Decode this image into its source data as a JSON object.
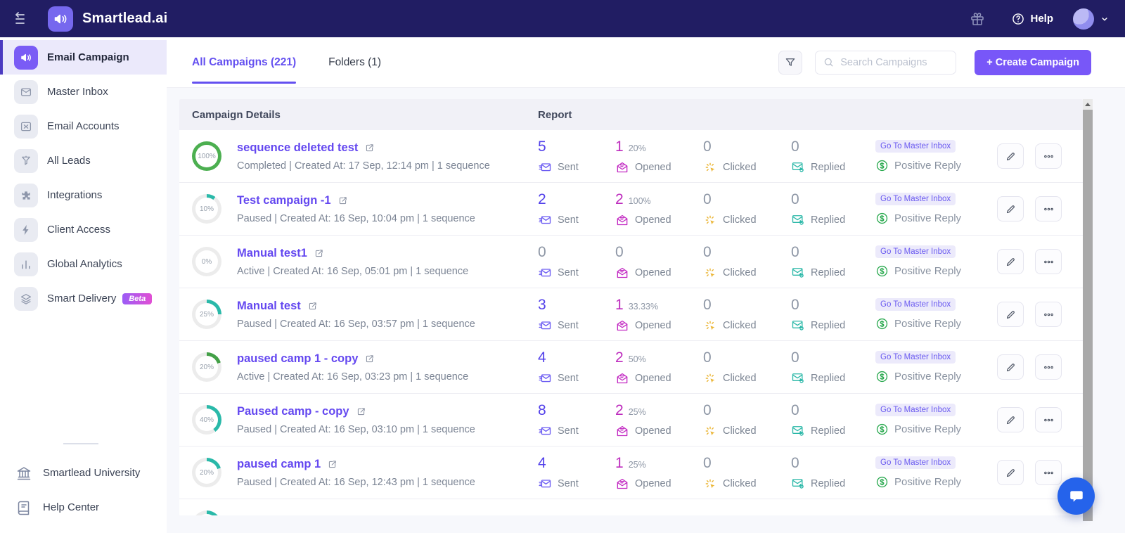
{
  "topbar": {
    "brand": "Smartlead.ai",
    "help_label": "Help"
  },
  "sidebar": {
    "items": [
      {
        "id": "email-campaign",
        "label": "Email Campaign",
        "icon": "megaphone",
        "active": true
      },
      {
        "id": "master-inbox",
        "label": "Master Inbox",
        "icon": "inbox",
        "active": false
      },
      {
        "id": "email-accounts",
        "label": "Email Accounts",
        "icon": "mail-x",
        "active": false
      },
      {
        "id": "all-leads",
        "label": "All Leads",
        "icon": "funnel-leads",
        "active": false
      },
      {
        "id": "integrations",
        "label": "Integrations",
        "icon": "puzzle",
        "active": false
      },
      {
        "id": "client-access",
        "label": "Client Access",
        "icon": "bolt",
        "active": false
      },
      {
        "id": "global-analytics",
        "label": "Global Analytics",
        "icon": "bar-chart",
        "active": false
      },
      {
        "id": "smart-delivery",
        "label": "Smart Delivery",
        "icon": "layers",
        "active": false,
        "badge": "Beta"
      }
    ],
    "footer_items": [
      {
        "id": "smartlead-university",
        "label": "Smartlead University",
        "icon": "bank"
      },
      {
        "id": "help-center",
        "label": "Help Center",
        "icon": "book"
      }
    ]
  },
  "toolbar": {
    "tabs": [
      {
        "label": "All Campaigns (221)",
        "active": true
      },
      {
        "label": "Folders (1)",
        "active": false
      }
    ],
    "search_placeholder": "Search Campaigns",
    "create_button": "+ Create Campaign"
  },
  "table": {
    "headers": {
      "details": "Campaign Details",
      "report": "Report"
    },
    "stat_labels": [
      "Sent",
      "Opened",
      "Clicked",
      "Replied"
    ],
    "row_labels": {
      "master_inbox": "Go To Master Inbox",
      "positive_reply": "Positive Reply"
    },
    "rows": [
      {
        "percent": "100%",
        "ring_value": 100,
        "ring_color": "#4caf50",
        "name": "sequence deleted test",
        "meta": "Completed | Created At: 17 Sep, 12:14 pm | 1 sequence",
        "sent": "5",
        "opened": "1",
        "opened_rate": "20%",
        "clicked": "0",
        "replied": "0"
      },
      {
        "percent": "10%",
        "ring_value": 10,
        "ring_color": "#2ab9a9",
        "name": "Test campaign -1",
        "meta": "Paused | Created At: 16 Sep, 10:04 pm | 1 sequence",
        "sent": "2",
        "opened": "2",
        "opened_rate": "100%",
        "clicked": "0",
        "replied": "0"
      },
      {
        "percent": "0%",
        "ring_value": 0,
        "ring_color": "#2ab9a9",
        "name": "Manual test1",
        "meta": "Active | Created At: 16 Sep, 05:01 pm | 1 sequence",
        "sent": "0",
        "opened": "0",
        "opened_rate": "",
        "clicked": "0",
        "replied": "0"
      },
      {
        "percent": "25%",
        "ring_value": 25,
        "ring_color": "#2ab9a9",
        "name": "Manual test",
        "meta": "Paused | Created At: 16 Sep, 03:57 pm | 1 sequence",
        "sent": "3",
        "opened": "1",
        "opened_rate": "33.33%",
        "clicked": "0",
        "replied": "0"
      },
      {
        "percent": "20%",
        "ring_value": 20,
        "ring_color": "#43a047",
        "name": "paused camp 1 - copy",
        "meta": "Active | Created At: 16 Sep, 03:23 pm | 1 sequence",
        "sent": "4",
        "opened": "2",
        "opened_rate": "50%",
        "clicked": "0",
        "replied": "0"
      },
      {
        "percent": "40%",
        "ring_value": 40,
        "ring_color": "#2ab9a9",
        "name": "Paused camp - copy",
        "meta": "Paused | Created At: 16 Sep, 03:10 pm | 1 sequence",
        "sent": "8",
        "opened": "2",
        "opened_rate": "25%",
        "clicked": "0",
        "replied": "0"
      },
      {
        "percent": "20%",
        "ring_value": 20,
        "ring_color": "#2ab9a9",
        "name": "paused camp 1",
        "meta": "Paused | Created At: 16 Sep, 12:43 pm | 1 sequence",
        "sent": "4",
        "opened": "1",
        "opened_rate": "25%",
        "clicked": "0",
        "replied": "0"
      },
      {
        "percent": "",
        "ring_value": 30,
        "ring_color": "#2ab9a9",
        "name": "",
        "meta": "",
        "sent": "",
        "opened": "",
        "opened_rate": "",
        "clicked": "",
        "replied": "",
        "partial": true
      }
    ]
  },
  "colors": {
    "topbar_bg": "#211d63",
    "accent_purple": "#6450f0",
    "sent_number": "#5240ea",
    "opened_number": "#bd2bbd",
    "clicked_icon": "#eab432",
    "replied_icon": "#2bb8a8",
    "positive_green": "#2aa94f",
    "ring_green": "#4caf50",
    "ring_teal": "#2ab9a9"
  }
}
